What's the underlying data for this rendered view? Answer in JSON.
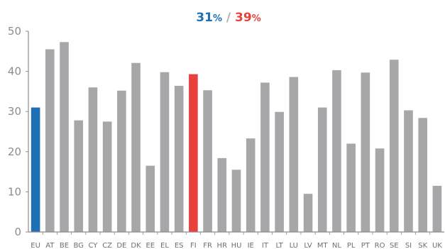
{
  "headline": {
    "eu_value": "31",
    "eu_unit": "%",
    "separator": " / ",
    "country_value": "39",
    "country_unit": "%"
  },
  "colors": {
    "eu": "#1f6fb5",
    "highlight": "#e8403a",
    "default": "#a7a7a9",
    "axis": "#8c8c8c",
    "separator": "#b0b0b0"
  },
  "chart_data": {
    "type": "bar",
    "title": "31% / 39%",
    "ylim": [
      0,
      50
    ],
    "yticks": [
      0,
      10,
      20,
      30,
      40,
      50
    ],
    "grid": false,
    "legend": "none",
    "categories": [
      "EU",
      "AT",
      "BE",
      "BG",
      "CY",
      "CZ",
      "DE",
      "DK",
      "EE",
      "EL",
      "ES",
      "FI",
      "FR",
      "HR",
      "HU",
      "IE",
      "IT",
      "LT",
      "LU",
      "LV",
      "MT",
      "NL",
      "PL",
      "PT",
      "RO",
      "SE",
      "SI",
      "SK",
      "UK"
    ],
    "values": [
      31,
      45.5,
      47.3,
      27.8,
      36,
      27.5,
      35.2,
      42.1,
      16.5,
      39.8,
      36.4,
      39.3,
      35.3,
      18.4,
      15.5,
      23.3,
      37.2,
      29.9,
      38.6,
      9.5,
      31,
      40.3,
      22,
      39.7,
      20.8,
      42.9,
      30.3,
      28.4,
      11.5
    ],
    "highlight": {
      "EU": "eu",
      "FI": "highlight"
    }
  }
}
